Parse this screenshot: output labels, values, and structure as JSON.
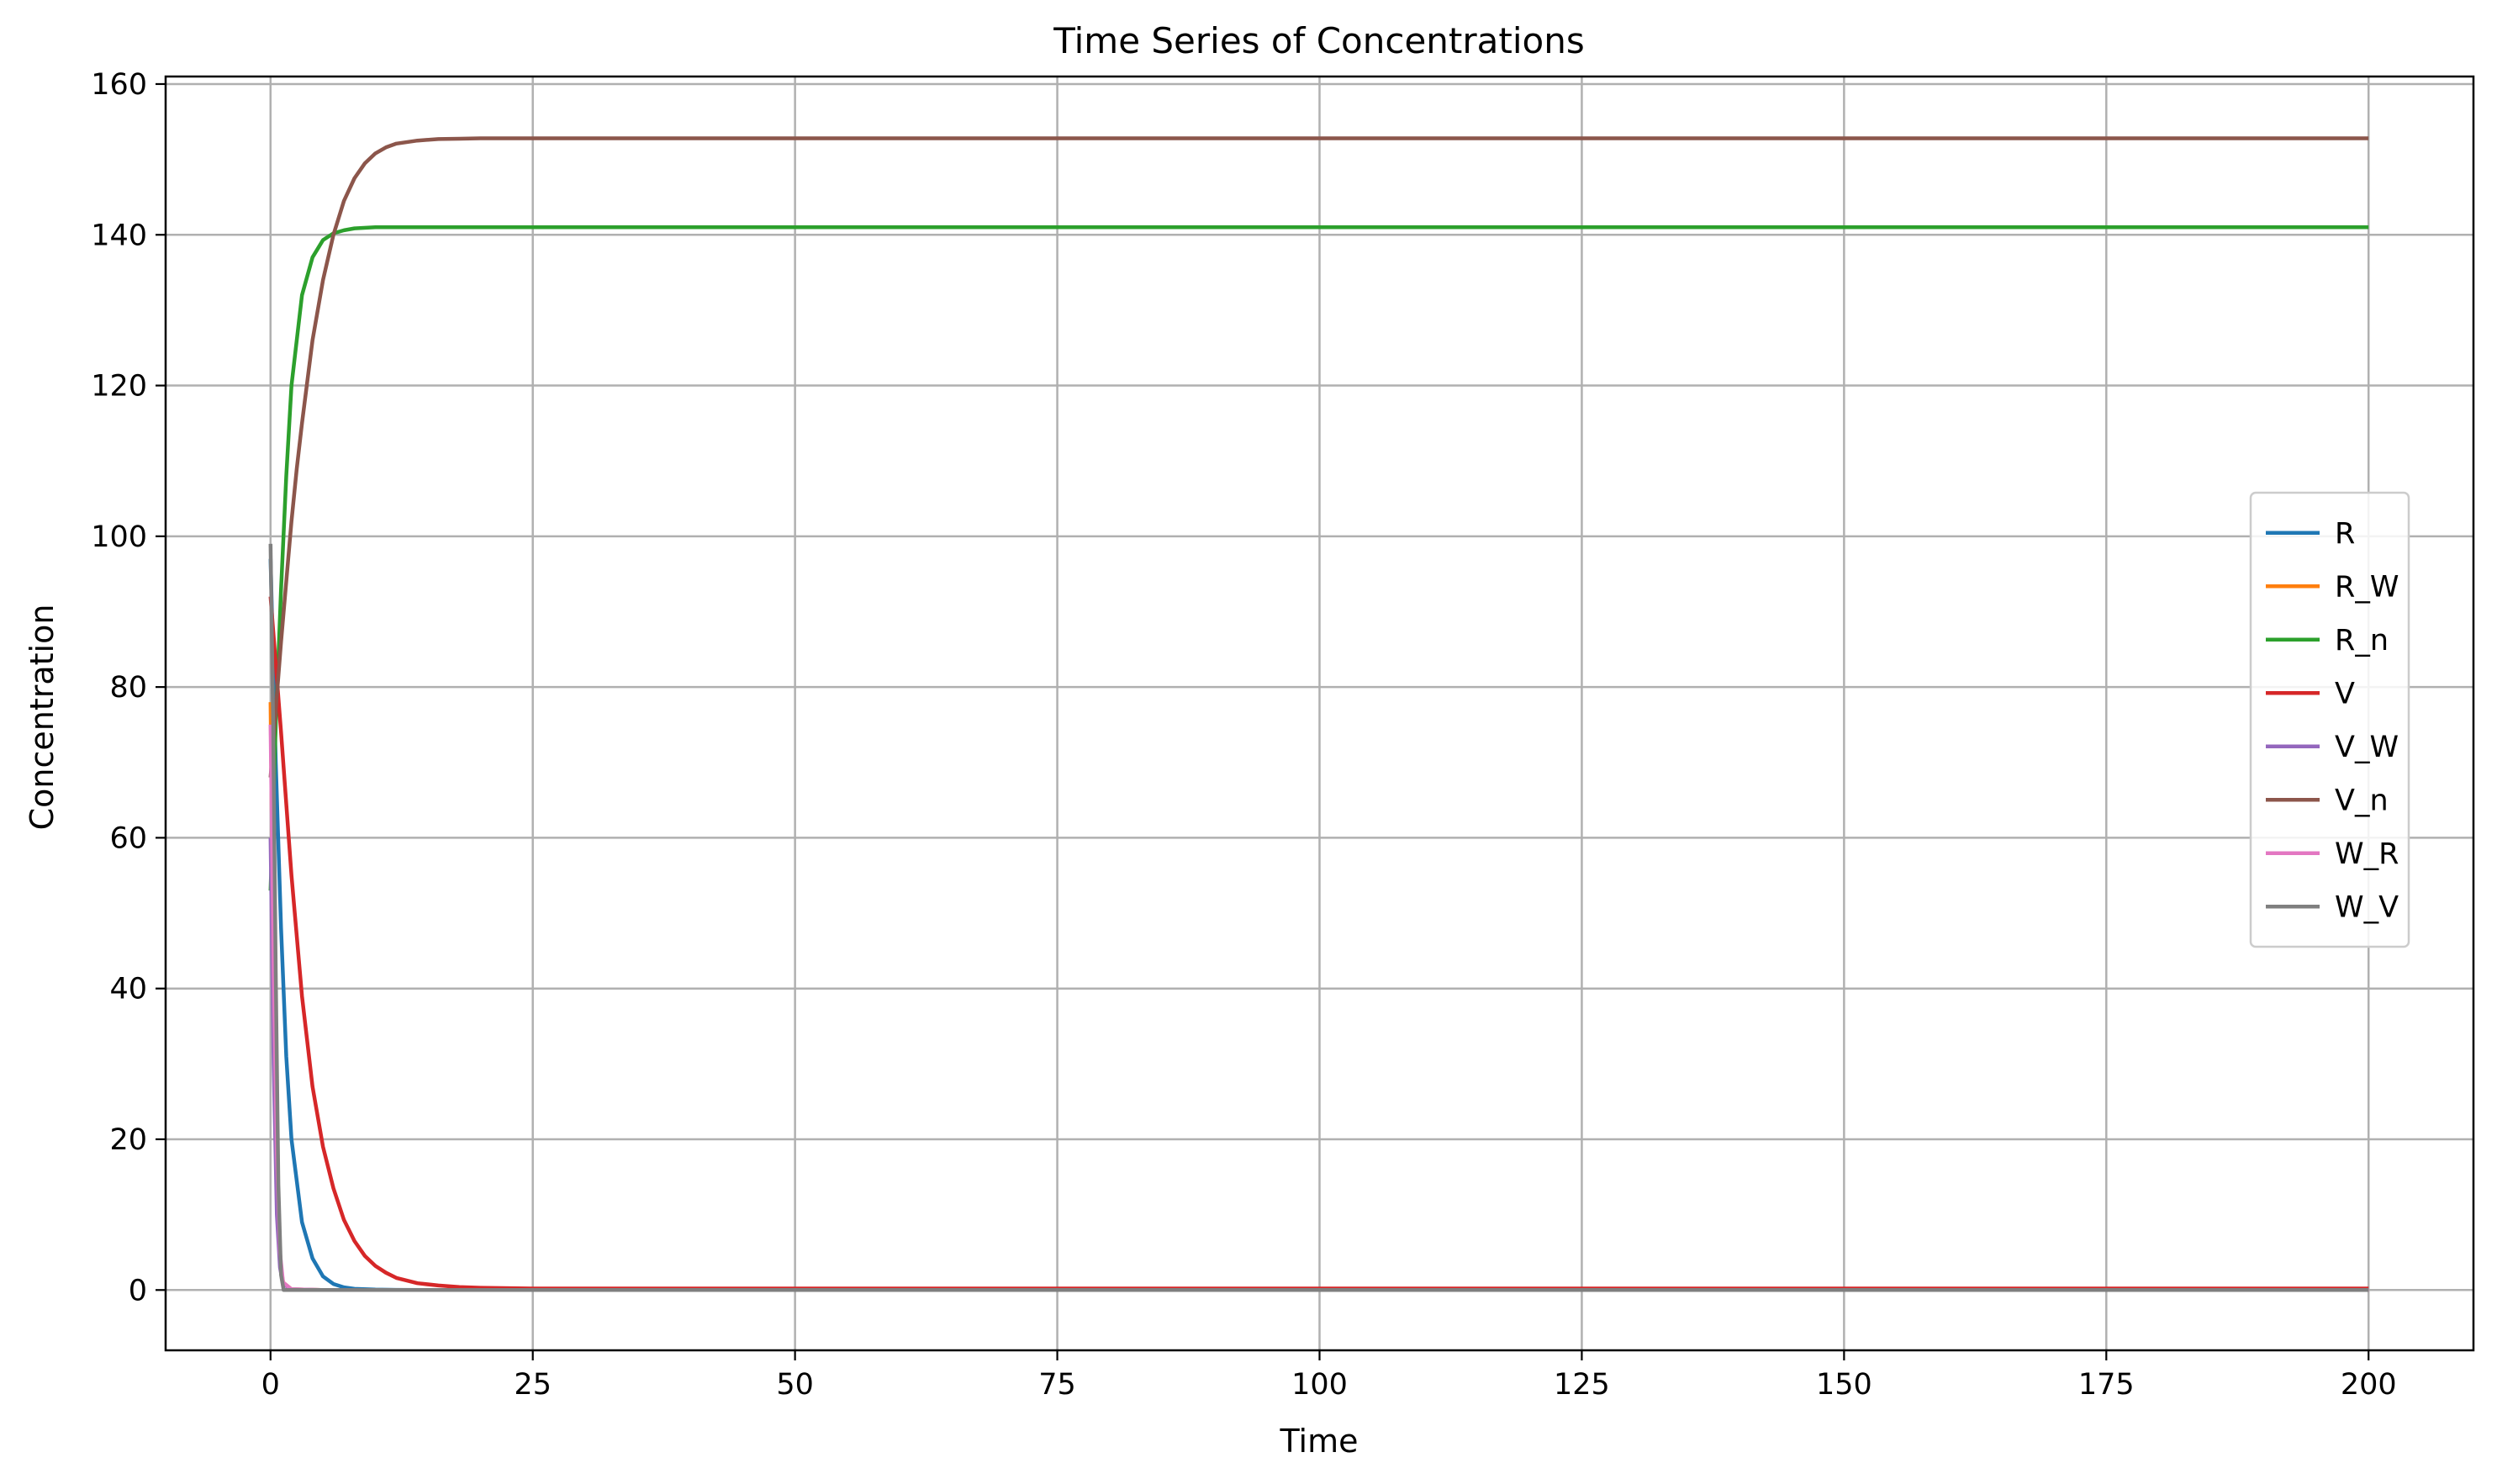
{
  "chart_data": {
    "type": "line",
    "title": "Time Series of Concentrations",
    "xlabel": "Time",
    "ylabel": "Concentration",
    "xlim": [
      -10,
      210
    ],
    "ylim": [
      -8,
      161
    ],
    "x_ticks": [
      0,
      25,
      50,
      75,
      100,
      125,
      150,
      175,
      200
    ],
    "y_ticks": [
      0,
      20,
      40,
      60,
      80,
      100,
      120,
      140,
      160
    ],
    "grid": true,
    "legend_position": "center-right",
    "series": [
      {
        "name": "R",
        "color": "#1f77b4",
        "x": [
          0,
          0.5,
          1,
          1.5,
          2,
          3,
          4,
          5,
          6,
          7,
          8,
          10,
          12,
          15,
          20,
          25,
          50,
          100,
          150,
          200
        ],
        "y": [
          97,
          70,
          48,
          31,
          20,
          9,
          4.2,
          1.8,
          0.8,
          0.35,
          0.15,
          0.05,
          0.02,
          0,
          0,
          0,
          0,
          0,
          0,
          0
        ]
      },
      {
        "name": "R_W",
        "color": "#ff7f0e",
        "x": [
          0,
          0.3,
          0.6,
          0.9,
          1.2,
          2,
          5,
          50,
          100,
          150,
          200
        ],
        "y": [
          78,
          40,
          15,
          4,
          1,
          0.1,
          0,
          0,
          0,
          0,
          0
        ]
      },
      {
        "name": "R_n",
        "color": "#2ca02c",
        "x": [
          0,
          0.5,
          1,
          1.5,
          2,
          3,
          4,
          5,
          6,
          7,
          8,
          10,
          12,
          15,
          20,
          25,
          50,
          100,
          150,
          200
        ],
        "y": [
          53,
          75,
          93,
          108,
          120,
          132,
          137,
          139.3,
          140.2,
          140.6,
          140.85,
          141,
          141,
          141,
          141,
          141,
          141,
          141,
          141,
          141
        ]
      },
      {
        "name": "V",
        "color": "#d62728",
        "x": [
          0,
          1,
          2,
          3,
          4,
          5,
          6,
          7,
          8,
          9,
          10,
          11,
          12,
          14,
          16,
          18,
          20,
          25,
          50,
          100,
          150,
          200
        ],
        "y": [
          92,
          74,
          55,
          39,
          27,
          19,
          13.5,
          9.3,
          6.5,
          4.5,
          3.2,
          2.3,
          1.6,
          0.9,
          0.6,
          0.4,
          0.3,
          0.2,
          0.2,
          0.2,
          0.2,
          0.2
        ]
      },
      {
        "name": "V_W",
        "color": "#9467bd",
        "x": [
          0,
          0.3,
          0.6,
          0.9,
          1.2,
          2,
          5,
          50,
          100,
          150,
          200
        ],
        "y": [
          60,
          30,
          10,
          3,
          0.8,
          0.1,
          0,
          0,
          0,
          0,
          0
        ]
      },
      {
        "name": "V_n",
        "color": "#8c564b",
        "x": [
          0,
          0.5,
          1,
          1.5,
          2,
          2.5,
          3,
          4,
          5,
          6,
          7,
          8,
          9,
          10,
          11,
          12,
          14,
          16,
          18,
          20,
          25,
          50,
          100,
          150,
          200
        ],
        "y": [
          68,
          77,
          86,
          94,
          102,
          109,
          115,
          126,
          134,
          140,
          144.5,
          147.5,
          149.5,
          150.8,
          151.6,
          152.1,
          152.5,
          152.7,
          152.75,
          152.8,
          152.8,
          152.8,
          152.8,
          152.8,
          152.8
        ]
      },
      {
        "name": "W_R",
        "color": "#e377c2",
        "x": [
          0,
          0.3,
          0.6,
          0.9,
          1.2,
          2,
          5,
          50,
          100,
          150,
          200
        ],
        "y": [
          75,
          42,
          18,
          5,
          1,
          0.1,
          0,
          0,
          0,
          0,
          0
        ]
      },
      {
        "name": "W_V",
        "color": "#7f7f7f",
        "x": [
          0,
          0.25,
          0.5,
          0.75,
          1,
          1.25,
          2,
          5,
          50,
          100,
          150,
          200
        ],
        "y": [
          99,
          75,
          42,
          14,
          2,
          0,
          0,
          0,
          0,
          0,
          0,
          0
        ]
      }
    ]
  }
}
